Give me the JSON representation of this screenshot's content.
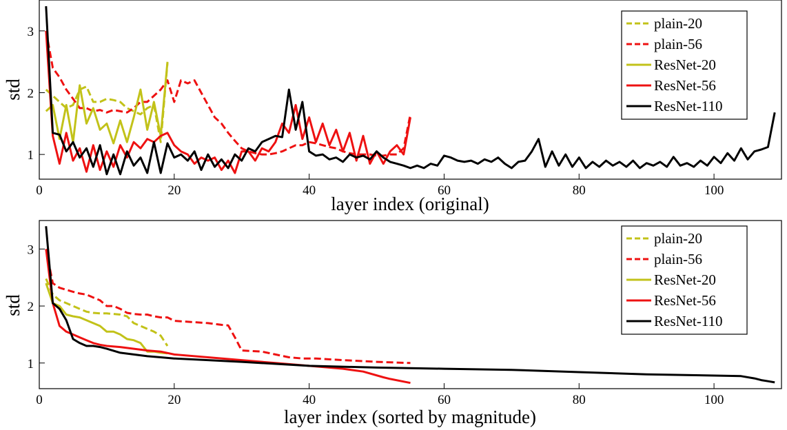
{
  "figure": {
    "legend": [
      "plain-20",
      "plain-56",
      "ResNet-20",
      "ResNet-56",
      "ResNet-110"
    ]
  },
  "series_styles": [
    {
      "name": "plain-20",
      "color": "#c2c219",
      "dash": true
    },
    {
      "name": "plain-56",
      "color": "#ee1111",
      "dash": true
    },
    {
      "name": "ResNet-20",
      "color": "#c2c219",
      "dash": false
    },
    {
      "name": "ResNet-56",
      "color": "#ee1111",
      "dash": false
    },
    {
      "name": "ResNet-110",
      "color": "#000000",
      "dash": false
    }
  ],
  "chart_data": [
    {
      "type": "line",
      "xlabel": "layer index (original)",
      "ylabel": "std",
      "xlim": [
        0,
        110
      ],
      "ylim": [
        0.6,
        3.5
      ],
      "xticks": [
        0,
        20,
        40,
        60,
        80,
        100
      ],
      "yticks": [
        1,
        2,
        3
      ],
      "grid": false,
      "legend_position": "top-right",
      "series": [
        {
          "name": "plain-20",
          "x": [
            1,
            2,
            3,
            4,
            5,
            6,
            7,
            8,
            9,
            10,
            11,
            12,
            13,
            14,
            15,
            16,
            17,
            18,
            19
          ],
          "y": [
            2.05,
            1.95,
            1.85,
            1.75,
            1.8,
            2.05,
            2.1,
            1.85,
            1.85,
            1.9,
            1.88,
            1.85,
            1.75,
            1.7,
            1.65,
            1.75,
            1.8,
            1.2,
            2.48
          ]
        },
        {
          "name": "plain-56",
          "x": [
            1,
            2,
            3,
            4,
            5,
            6,
            7,
            8,
            9,
            10,
            11,
            12,
            13,
            14,
            15,
            16,
            17,
            18,
            19,
            20,
            21,
            22,
            23,
            24,
            25,
            26,
            27,
            28,
            29,
            30,
            31,
            32,
            33,
            34,
            35,
            36,
            37,
            38,
            39,
            40,
            41,
            42,
            43,
            44,
            45,
            46,
            47,
            48,
            49,
            50,
            51,
            52,
            53,
            54,
            55
          ],
          "y": [
            3.0,
            2.4,
            2.25,
            2.05,
            1.9,
            1.75,
            1.75,
            1.7,
            1.72,
            1.68,
            1.72,
            1.7,
            1.68,
            1.75,
            1.85,
            1.85,
            1.95,
            2.05,
            2.2,
            1.85,
            2.2,
            2.15,
            2.2,
            2.0,
            1.8,
            1.6,
            1.5,
            1.35,
            1.22,
            1.1,
            1.05,
            1.02,
            1.0,
            1.0,
            1.02,
            1.05,
            1.1,
            1.15,
            1.15,
            1.2,
            1.18,
            1.15,
            1.12,
            1.1,
            1.05,
            1.02,
            1.0,
            1.0,
            1.0,
            0.98,
            0.98,
            1.0,
            1.0,
            1.1,
            1.65
          ]
        },
        {
          "name": "ResNet-20",
          "x": [
            1,
            2,
            3,
            4,
            5,
            6,
            7,
            8,
            9,
            10,
            11,
            12,
            13,
            14,
            15,
            16,
            17,
            18,
            19
          ],
          "y": [
            1.7,
            1.8,
            1.25,
            1.8,
            1.2,
            2.12,
            1.5,
            1.75,
            1.4,
            1.5,
            1.18,
            1.55,
            1.2,
            1.6,
            2.05,
            1.4,
            1.85,
            1.3,
            2.5
          ]
        },
        {
          "name": "ResNet-56",
          "x": [
            1,
            2,
            3,
            4,
            5,
            6,
            7,
            8,
            9,
            10,
            11,
            12,
            13,
            14,
            15,
            16,
            17,
            18,
            19,
            20,
            21,
            22,
            23,
            24,
            25,
            26,
            27,
            28,
            29,
            30,
            31,
            32,
            33,
            34,
            35,
            36,
            37,
            38,
            39,
            40,
            41,
            42,
            43,
            44,
            45,
            46,
            47,
            48,
            49,
            50,
            51,
            52,
            53,
            54,
            55
          ],
          "y": [
            3.0,
            1.3,
            0.85,
            1.35,
            0.9,
            1.1,
            0.72,
            1.15,
            0.75,
            1.05,
            0.8,
            1.15,
            0.95,
            1.2,
            1.1,
            1.25,
            1.2,
            1.3,
            1.35,
            1.15,
            1.05,
            1.0,
            0.85,
            0.95,
            0.9,
            0.95,
            0.75,
            0.9,
            0.7,
            1.05,
            1.05,
            0.9,
            1.1,
            1.05,
            1.2,
            1.5,
            1.35,
            1.8,
            1.25,
            1.6,
            1.2,
            1.5,
            1.15,
            1.4,
            1.05,
            1.35,
            0.9,
            1.3,
            0.85,
            1.05,
            0.85,
            1.05,
            1.15,
            1.0,
            1.6
          ]
        },
        {
          "name": "ResNet-110",
          "x": [
            1,
            2,
            3,
            4,
            5,
            6,
            7,
            8,
            9,
            10,
            11,
            12,
            13,
            14,
            15,
            16,
            17,
            18,
            19,
            20,
            21,
            22,
            23,
            24,
            25,
            26,
            27,
            28,
            29,
            30,
            31,
            32,
            33,
            34,
            35,
            36,
            37,
            38,
            39,
            40,
            41,
            42,
            43,
            44,
            45,
            46,
            47,
            48,
            49,
            50,
            51,
            52,
            53,
            54,
            55,
            56,
            57,
            58,
            59,
            60,
            61,
            62,
            63,
            64,
            65,
            66,
            67,
            68,
            69,
            70,
            71,
            72,
            73,
            74,
            75,
            76,
            77,
            78,
            79,
            80,
            81,
            82,
            83,
            84,
            85,
            86,
            87,
            88,
            89,
            90,
            91,
            92,
            93,
            94,
            95,
            96,
            97,
            98,
            99,
            100,
            101,
            102,
            103,
            104,
            105,
            106,
            107,
            108,
            109
          ],
          "y": [
            3.4,
            1.35,
            1.32,
            1.05,
            1.2,
            0.95,
            1.1,
            0.8,
            1.15,
            0.68,
            1.0,
            0.68,
            1.05,
            0.82,
            0.95,
            0.7,
            1.2,
            0.7,
            1.18,
            0.95,
            1.0,
            0.9,
            1.05,
            0.75,
            1.0,
            0.8,
            0.92,
            0.78,
            1.0,
            0.9,
            1.1,
            1.05,
            1.2,
            1.25,
            1.3,
            1.28,
            2.05,
            1.4,
            1.85,
            1.05,
            0.98,
            1.0,
            0.92,
            0.95,
            0.88,
            1.0,
            0.95,
            0.98,
            0.92,
            1.05,
            0.95,
            0.88,
            0.85,
            0.82,
            0.78,
            0.82,
            0.78,
            0.85,
            0.82,
            0.98,
            0.95,
            0.9,
            0.88,
            0.9,
            0.85,
            0.92,
            0.88,
            0.95,
            0.85,
            0.78,
            0.88,
            0.9,
            1.05,
            1.25,
            0.8,
            1.05,
            0.82,
            1.0,
            0.8,
            0.95,
            0.78,
            0.88,
            0.8,
            0.9,
            0.82,
            0.88,
            0.8,
            0.9,
            0.78,
            0.86,
            0.82,
            0.88,
            0.8,
            0.96,
            0.82,
            0.86,
            0.8,
            0.9,
            0.82,
            0.96,
            0.86,
            1.02,
            0.9,
            1.1,
            0.92,
            1.05,
            1.08,
            1.12,
            1.68
          ]
        }
      ]
    },
    {
      "type": "line",
      "xlabel": "layer index (sorted by magnitude)",
      "ylabel": "std",
      "xlim": [
        0,
        110
      ],
      "ylim": [
        0.55,
        3.5
      ],
      "xticks": [
        0,
        20,
        40,
        60,
        80,
        100
      ],
      "yticks": [
        1,
        2,
        3
      ],
      "grid": false,
      "legend_position": "top-right",
      "series": [
        {
          "name": "plain-20",
          "x": [
            1,
            2,
            3,
            4,
            5,
            6,
            7,
            8,
            9,
            10,
            11,
            12,
            13,
            14,
            15,
            16,
            17,
            18,
            19
          ],
          "y": [
            2.48,
            2.2,
            2.1,
            2.05,
            2.0,
            1.95,
            1.9,
            1.88,
            1.87,
            1.87,
            1.86,
            1.85,
            1.82,
            1.7,
            1.65,
            1.6,
            1.55,
            1.48,
            1.3
          ]
        },
        {
          "name": "plain-56",
          "x": [
            1,
            2,
            3,
            5,
            6,
            7,
            8,
            9,
            10,
            11,
            12,
            13,
            14,
            15,
            16,
            17,
            18,
            19,
            20,
            25,
            27,
            28,
            29,
            30,
            33,
            35,
            37,
            39,
            41,
            45,
            50,
            55
          ],
          "y": [
            3.0,
            2.4,
            2.32,
            2.25,
            2.22,
            2.2,
            2.15,
            2.1,
            2.0,
            2.0,
            1.95,
            1.88,
            1.86,
            1.85,
            1.85,
            1.82,
            1.8,
            1.8,
            1.74,
            1.7,
            1.67,
            1.66,
            1.45,
            1.22,
            1.2,
            1.15,
            1.1,
            1.08,
            1.08,
            1.05,
            1.02,
            1.0
          ]
        },
        {
          "name": "ResNet-20",
          "x": [
            1,
            2,
            3,
            4,
            5,
            6,
            7,
            8,
            9,
            10,
            11,
            12,
            13,
            14,
            15,
            16,
            17,
            18,
            19
          ],
          "y": [
            2.4,
            2.05,
            2.0,
            1.85,
            1.82,
            1.8,
            1.75,
            1.7,
            1.65,
            1.55,
            1.55,
            1.5,
            1.42,
            1.4,
            1.35,
            1.2,
            1.2,
            1.18,
            1.17
          ]
        },
        {
          "name": "ResNet-56",
          "x": [
            1,
            2,
            3,
            4,
            5,
            6,
            7,
            8,
            9,
            10,
            12,
            14,
            16,
            18,
            20,
            25,
            30,
            35,
            40,
            45,
            48,
            51,
            52,
            55
          ],
          "y": [
            3.0,
            2.05,
            1.65,
            1.55,
            1.5,
            1.45,
            1.4,
            1.35,
            1.32,
            1.3,
            1.28,
            1.25,
            1.22,
            1.2,
            1.15,
            1.1,
            1.05,
            1.0,
            0.95,
            0.9,
            0.85,
            0.75,
            0.72,
            0.65
          ]
        },
        {
          "name": "ResNet-110",
          "x": [
            1,
            2,
            3,
            4,
            5,
            6,
            7,
            8,
            9,
            10,
            12,
            14,
            16,
            18,
            20,
            25,
            30,
            40,
            50,
            60,
            70,
            80,
            90,
            100,
            104,
            106,
            107,
            108,
            109
          ],
          "y": [
            3.4,
            2.05,
            1.95,
            1.75,
            1.42,
            1.35,
            1.3,
            1.3,
            1.28,
            1.25,
            1.18,
            1.15,
            1.12,
            1.1,
            1.08,
            1.05,
            1.02,
            0.95,
            0.92,
            0.9,
            0.88,
            0.84,
            0.8,
            0.78,
            0.77,
            0.73,
            0.7,
            0.68,
            0.66
          ]
        }
      ]
    }
  ]
}
